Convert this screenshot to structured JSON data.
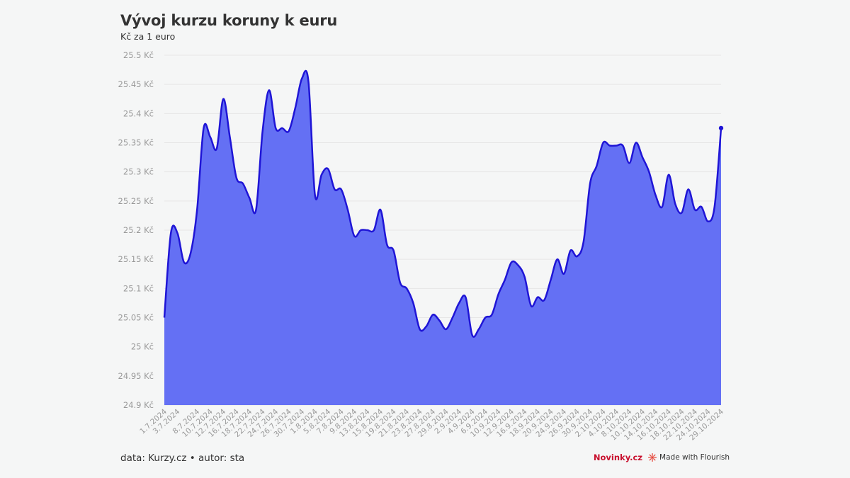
{
  "title": "Vývoj kurzu koruny k euru",
  "subtitle": "Kč za 1 euro",
  "footer": {
    "source": "data: Kurzy.cz • autor: sta",
    "brand": "Novinky.cz",
    "made_with": "Made with Flourish"
  },
  "colors": {
    "line": "#1f15d6",
    "area": "#6470f4",
    "grid": "#e6e6e6",
    "tick_text": "#999999",
    "brand": "#c8102e",
    "flourish_icon": "#e5463a"
  },
  "icons": {
    "flourish": "flourish-burst-icon"
  },
  "chart_data": {
    "type": "area",
    "title": "Vývoj kurzu koruny k euru",
    "ylabel": "Kč za 1 euro",
    "ylim": [
      24.9,
      25.5
    ],
    "y_ticks": [
      "25.5 Kč",
      "25.45 Kč",
      "25.4 Kč",
      "25.35 Kč",
      "25.3 Kč",
      "25.25 Kč",
      "25.2 Kč",
      "25.15 Kč",
      "25.1 Kč",
      "25.05 Kč",
      "25 Kč",
      "24.95 Kč",
      "24.9 Kč"
    ],
    "x_ticks": [
      "1.7.2024",
      "3.7.2024",
      "8.7.2024",
      "10.7.2024",
      "12.7.2024",
      "16.7.2024",
      "18.7.2024",
      "22.7.2024",
      "24.7.2024",
      "26.7.2024",
      "30.7.2024",
      "1.8.2024",
      "5.8.2024",
      "7.8.2024",
      "9.8.2024",
      "13.8.2024",
      "15.8.2024",
      "19.8.2024",
      "21.8.2024",
      "23.8.2024",
      "27.8.2024",
      "29.8.2024",
      "2.9.2024",
      "4.9.2024",
      "6.9.2024",
      "10.9.2024",
      "12.9.2024",
      "16.9.2024",
      "18.9.2024",
      "20.9.2024",
      "24.9.2024",
      "26.9.2024",
      "30.9.2024",
      "2.10.2024",
      "4.10.2024",
      "8.10.2024",
      "10.10.2024",
      "14.10.2024",
      "16.10.2024",
      "18.10.2024",
      "22.10.2024",
      "24.10.2024",
      "29.10.2024"
    ],
    "grid": true,
    "legend": "none",
    "series": [
      {
        "x": [
          "1.7.2024",
          "2.7.2024",
          "3.7.2024",
          "4.7.2024",
          "5.7.2024",
          "8.7.2024",
          "9.7.2024",
          "10.7.2024",
          "11.7.2024",
          "12.7.2024",
          "15.7.2024",
          "16.7.2024",
          "17.7.2024",
          "18.7.2024",
          "19.7.2024",
          "22.7.2024",
          "23.7.2024",
          "24.7.2024",
          "25.7.2024",
          "26.7.2024",
          "29.7.2024",
          "30.7.2024",
          "31.7.2024",
          "1.8.2024",
          "2.8.2024",
          "5.8.2024",
          "6.8.2024",
          "7.8.2024",
          "8.8.2024",
          "9.8.2024",
          "12.8.2024",
          "13.8.2024",
          "14.8.2024",
          "15.8.2024",
          "16.8.2024",
          "19.8.2024",
          "20.8.2024",
          "21.8.2024",
          "22.8.2024",
          "23.8.2024",
          "26.8.2024",
          "27.8.2024",
          "28.8.2024",
          "29.8.2024",
          "30.8.2024",
          "2.9.2024",
          "3.9.2024",
          "4.9.2024",
          "5.9.2024",
          "6.9.2024",
          "9.9.2024",
          "10.9.2024",
          "11.9.2024",
          "12.9.2024",
          "13.9.2024",
          "16.9.2024",
          "17.9.2024",
          "18.9.2024",
          "19.9.2024",
          "20.9.2024",
          "23.9.2024",
          "24.9.2024",
          "25.9.2024",
          "26.9.2024",
          "27.9.2024",
          "30.9.2024",
          "1.10.2024",
          "2.10.2024",
          "3.10.2024",
          "4.10.2024",
          "7.10.2024",
          "8.10.2024",
          "9.10.2024",
          "10.10.2024",
          "11.10.2024",
          "14.10.2024",
          "15.10.2024",
          "16.10.2024",
          "17.10.2024",
          "18.10.2024",
          "21.10.2024",
          "22.10.2024",
          "23.10.2024",
          "24.10.2024",
          "25.10.2024",
          "29.10.2024"
        ],
        "values": [
          25.05,
          25.195,
          25.195,
          25.145,
          25.16,
          25.235,
          25.375,
          25.36,
          25.34,
          25.425,
          25.36,
          25.29,
          25.28,
          25.255,
          25.235,
          25.37,
          25.44,
          25.375,
          25.375,
          25.37,
          25.41,
          25.46,
          25.455,
          25.26,
          25.295,
          25.305,
          25.27,
          25.27,
          25.235,
          25.19,
          25.2,
          25.2,
          25.2,
          25.235,
          25.175,
          25.165,
          25.11,
          25.1,
          25.075,
          25.03,
          25.035,
          25.055,
          25.045,
          25.03,
          25.05,
          25.075,
          25.085,
          25.02,
          25.03,
          25.05,
          25.055,
          25.09,
          25.115,
          25.145,
          25.14,
          25.12,
          25.07,
          25.085,
          25.08,
          25.115,
          25.15,
          25.125,
          25.165,
          25.155,
          25.18,
          25.28,
          25.31,
          25.35,
          25.345,
          25.345,
          25.345,
          25.315,
          25.35,
          25.325,
          25.3,
          25.26,
          25.24,
          25.295,
          25.245,
          25.23,
          25.27,
          25.235,
          25.24,
          25.215,
          25.24,
          25.375
        ]
      }
    ]
  }
}
